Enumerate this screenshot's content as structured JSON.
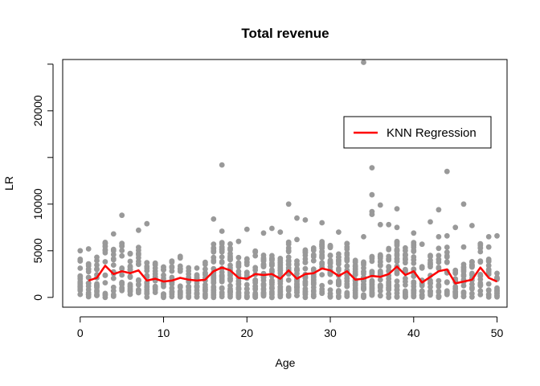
{
  "chart_data": {
    "type": "scatter",
    "title": "Total revenue",
    "xlabel": "Age",
    "ylabel": "LR",
    "xlim": [
      0,
      50
    ],
    "ylim": [
      0,
      25000
    ],
    "x_ticks": [
      0,
      10,
      20,
      30,
      40,
      50
    ],
    "y_ticks": [
      0,
      5000,
      10000,
      15000,
      20000,
      25000
    ],
    "y_tick_labels": [
      "0",
      "5000",
      "10000",
      "",
      "20000",
      ""
    ],
    "grid": false,
    "legend": {
      "placement": "right",
      "entries": [
        {
          "label": "KNN Regression",
          "color": "#ff0000"
        }
      ]
    },
    "colors": {
      "points": "#999999",
      "line": "#ff0000"
    },
    "series": [
      {
        "kind": "points",
        "points": [
          [
            34,
            25200
          ],
          [
            17,
            14200
          ],
          [
            35,
            13900
          ],
          [
            44,
            13500
          ],
          [
            35,
            11000
          ],
          [
            25,
            10000
          ],
          [
            46,
            10000
          ],
          [
            36,
            9900
          ],
          [
            35,
            9200
          ],
          [
            38,
            9500
          ],
          [
            43,
            9400
          ],
          [
            35,
            8900
          ],
          [
            5,
            8800
          ],
          [
            26,
            8500
          ],
          [
            16,
            8400
          ],
          [
            27,
            8300
          ],
          [
            42,
            8100
          ],
          [
            29,
            8000
          ],
          [
            36,
            7800
          ],
          [
            8,
            7900
          ],
          [
            37,
            7800
          ],
          [
            45,
            7500
          ],
          [
            38,
            7500
          ],
          [
            23,
            7400
          ],
          [
            20,
            7300
          ],
          [
            47,
            7700
          ],
          [
            7,
            7200
          ],
          [
            17,
            7100
          ],
          [
            24,
            7000
          ],
          [
            31,
            7000
          ],
          [
            4,
            6800
          ],
          [
            22,
            6900
          ],
          [
            40,
            6900
          ],
          [
            49,
            6500
          ],
          [
            50,
            6600
          ],
          [
            43,
            6500
          ],
          [
            26,
            6200
          ],
          [
            19,
            6000
          ],
          [
            34,
            6500
          ],
          [
            44,
            6600
          ],
          [
            11,
            3900
          ],
          [
            12,
            4400
          ],
          [
            12,
            500
          ],
          [
            14,
            1200
          ],
          [
            0,
            5000
          ],
          [
            1,
            5200
          ],
          [
            2,
            4300
          ],
          [
            48,
            5300
          ],
          [
            48,
            4900
          ],
          [
            49,
            5400
          ],
          [
            46,
            5400
          ],
          [
            41,
            5700
          ],
          [
            39,
            5300
          ],
          [
            32,
            5400
          ]
        ]
      },
      {
        "kind": "line",
        "name": "KNN Regression",
        "points": [
          [
            1,
            1800
          ],
          [
            2,
            2100
          ],
          [
            3,
            3400
          ],
          [
            4,
            2500
          ],
          [
            5,
            2800
          ],
          [
            6,
            2600
          ],
          [
            7,
            2900
          ],
          [
            8,
            1800
          ],
          [
            9,
            2000
          ],
          [
            10,
            1700
          ],
          [
            11,
            1800
          ],
          [
            12,
            2100
          ],
          [
            13,
            1900
          ],
          [
            14,
            1800
          ],
          [
            15,
            1900
          ],
          [
            16,
            2800
          ],
          [
            17,
            3200
          ],
          [
            18,
            2900
          ],
          [
            19,
            2100
          ],
          [
            20,
            2000
          ],
          [
            21,
            2500
          ],
          [
            22,
            2400
          ],
          [
            23,
            2500
          ],
          [
            24,
            2000
          ],
          [
            25,
            2900
          ],
          [
            26,
            2000
          ],
          [
            27,
            2500
          ],
          [
            28,
            2600
          ],
          [
            29,
            3100
          ],
          [
            30,
            2900
          ],
          [
            31,
            2300
          ],
          [
            32,
            2800
          ],
          [
            33,
            1900
          ],
          [
            34,
            2000
          ],
          [
            35,
            2300
          ],
          [
            36,
            2200
          ],
          [
            37,
            2500
          ],
          [
            38,
            3300
          ],
          [
            39,
            2400
          ],
          [
            40,
            2800
          ],
          [
            41,
            1600
          ],
          [
            42,
            2200
          ],
          [
            43,
            2800
          ],
          [
            44,
            3000
          ],
          [
            45,
            1500
          ],
          [
            46,
            1700
          ],
          [
            47,
            1900
          ],
          [
            48,
            3200
          ],
          [
            49,
            2100
          ],
          [
            50,
            1700
          ]
        ]
      }
    ]
  }
}
